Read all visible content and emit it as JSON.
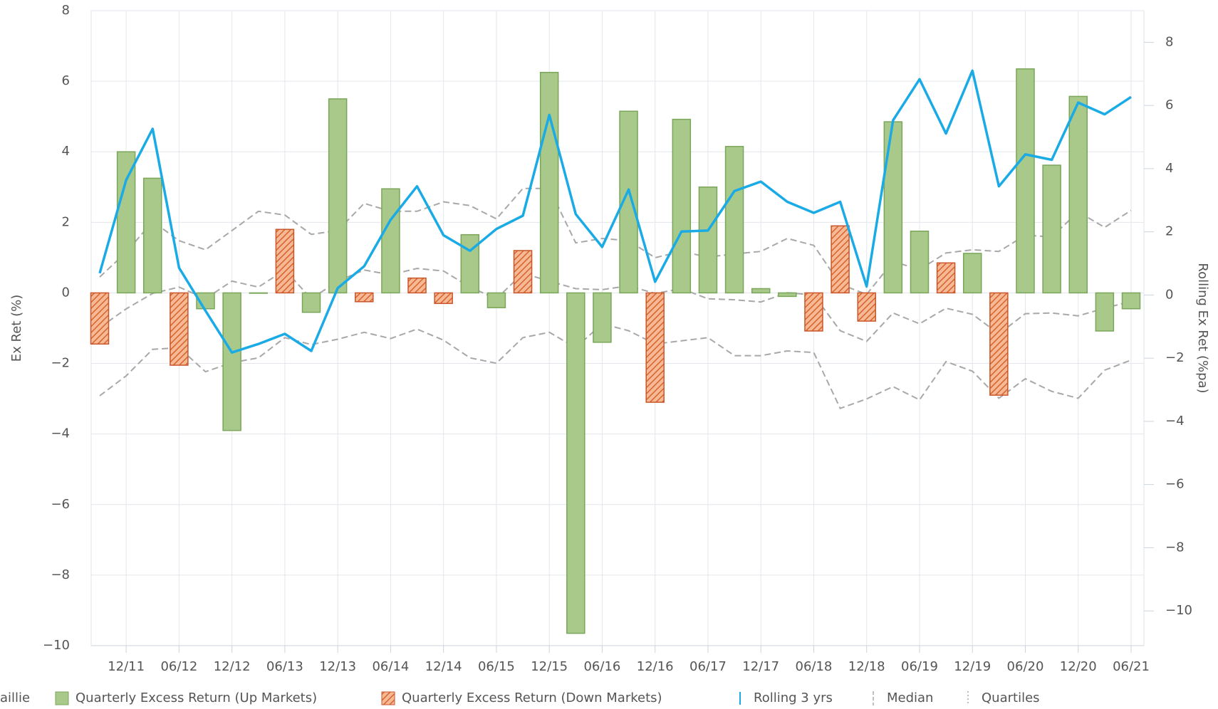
{
  "chart_data": {
    "type": "bar_line",
    "y_label": "Ex Ret (%)",
    "y2_label": "Rolling Ex Ret (%pa)",
    "legend_extra": "aillie",
    "categories": [
      null,
      "12/11",
      null,
      "06/12",
      null,
      "12/12",
      null,
      "06/13",
      null,
      "12/13",
      null,
      "06/14",
      null,
      "12/14",
      null,
      "06/15",
      null,
      "12/15",
      null,
      "06/16",
      null,
      "12/16",
      null,
      "06/17",
      null,
      "12/17",
      null,
      "06/18",
      null,
      "12/18",
      null,
      "06/19",
      null,
      "12/19",
      null,
      "06/20",
      null,
      "12/20",
      null,
      "06/21"
    ],
    "ylim": [
      -10,
      8
    ],
    "yticks": [
      {
        "value": -10,
        "label": "−10"
      },
      {
        "value": -8,
        "label": "−8"
      },
      {
        "value": -6,
        "label": "−6"
      },
      {
        "value": -4,
        "label": "−4"
      },
      {
        "value": -2,
        "label": "−2"
      },
      0,
      2,
      4,
      6,
      8
    ],
    "y2lim": [
      -11.1,
      9.0
    ],
    "y2ticks": [
      {
        "value": -10,
        "label": "−10"
      },
      {
        "value": -8,
        "label": "−8"
      },
      {
        "value": -6,
        "label": "−6"
      },
      {
        "value": -4,
        "label": "−4"
      },
      {
        "value": -2,
        "label": "−2"
      },
      0,
      2,
      4,
      6,
      8
    ],
    "grid": true,
    "series": [
      {
        "name": "Quarterly Excess Return (Up Markets)",
        "kind": "bar",
        "color": "#a9c98a",
        "stroke": "#7aa65a",
        "values": [
          null,
          4.0,
          3.25,
          null,
          -0.45,
          -3.9,
          0,
          null,
          -0.55,
          5.5,
          null,
          2.95,
          null,
          null,
          1.65,
          -0.42,
          null,
          6.25,
          -9.65,
          -1.4,
          5.15,
          null,
          4.92,
          3.0,
          4.15,
          0.12,
          -0.1,
          null,
          null,
          null,
          4.85,
          1.75,
          null,
          1.12,
          null,
          6.35,
          3.62,
          5.57,
          -1.08,
          -0.45
        ]
      },
      {
        "name": "Quarterly Excess Return (Down Markets)",
        "kind": "hatched-bar",
        "color": "#f2a57c",
        "stroke": "#c9562a",
        "values": [
          -1.45,
          null,
          null,
          -2.05,
          null,
          null,
          null,
          1.8,
          null,
          null,
          -0.25,
          null,
          0.42,
          -0.3,
          null,
          null,
          1.2,
          null,
          null,
          null,
          null,
          -3.1,
          null,
          null,
          null,
          null,
          null,
          -1.08,
          1.9,
          -0.8,
          null,
          null,
          0.85,
          null,
          -2.9,
          null,
          null,
          null,
          null,
          null
        ]
      },
      {
        "name": "Rolling 3 yrs",
        "kind": "line",
        "axis": "y2",
        "color": "#1aabe6",
        "values": [
          0.69,
          3.64,
          5.26,
          0.86,
          -0.5,
          -1.82,
          -1.55,
          -1.23,
          -1.77,
          0.22,
          0.91,
          2.38,
          3.44,
          1.89,
          1.4,
          2.09,
          2.51,
          5.7,
          2.56,
          1.52,
          3.34,
          0.42,
          2.01,
          2.04,
          3.29,
          3.59,
          2.95,
          2.6,
          2.95,
          0.27,
          5.53,
          6.83,
          5.11,
          7.1,
          3.44,
          4.45,
          4.28,
          6.09,
          5.72,
          6.27
        ]
      },
      {
        "name": "Median",
        "kind": "dashed",
        "axis": "y2",
        "color": "#a8a8a8",
        "values": [
          -1.03,
          -0.44,
          0.05,
          0.25,
          -0.12,
          0.44,
          0.25,
          0.79,
          -0.12,
          0.44,
          0.79,
          0.64,
          0.84,
          0.76,
          0.25,
          -0.12,
          0.69,
          0.44,
          0.2,
          0.17,
          0.29,
          0.05,
          0.2,
          -0.12,
          -0.15,
          -0.22,
          0.07,
          0,
          -1.13,
          -1.47,
          -0.57,
          -0.91,
          -0.42,
          -0.61,
          -1.23,
          -0.59,
          -0.57,
          -0.66,
          -0.42,
          -0.2
        ]
      },
      {
        "name": "Quartiles",
        "kind": "quartiles",
        "axis": "y2",
        "color": "#a8a8a8",
        "upper": [
          0.57,
          1.35,
          2.33,
          1.72,
          1.43,
          2.04,
          2.65,
          2.53,
          1.92,
          2.04,
          2.9,
          2.65,
          2.65,
          2.95,
          2.83,
          2.41,
          3.37,
          3.37,
          1.65,
          1.79,
          1.72,
          1.18,
          1.38,
          1.2,
          1.3,
          1.38,
          1.79,
          1.57,
          0.34,
          0.02,
          1.06,
          0.81,
          1.33,
          1.43,
          1.38,
          1.89,
          1.84,
          2.63,
          2.14,
          2.68
        ],
        "lower": [
          -3.19,
          -2.56,
          -1.72,
          -1.67,
          -2.43,
          -2.14,
          -1.99,
          -1.35,
          -1.57,
          -1.4,
          -1.18,
          -1.38,
          -1.08,
          -1.43,
          -1.99,
          -2.16,
          -1.35,
          -1.18,
          -1.67,
          -0.91,
          -1.13,
          -1.55,
          -1.45,
          -1.35,
          -1.92,
          -1.92,
          -1.77,
          -1.82,
          -3.59,
          -3.29,
          -2.9,
          -3.32,
          -2.11,
          -2.41,
          -3.27,
          -2.65,
          -3.05,
          -3.27,
          -2.38,
          -2.06
        ]
      }
    ]
  }
}
